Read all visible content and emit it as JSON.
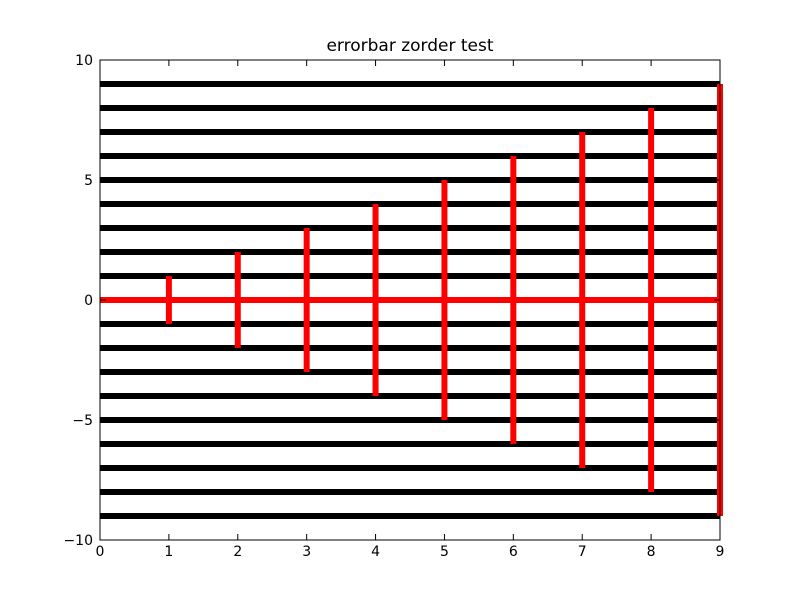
{
  "chart_data": {
    "type": "line",
    "title": "errorbar zorder test",
    "xlabel": "",
    "ylabel": "",
    "xlim": [
      0,
      9
    ],
    "ylim": [
      -10,
      10
    ],
    "xticks": [
      0,
      1,
      2,
      3,
      4,
      5,
      6,
      7,
      8,
      9
    ],
    "xtick_labels": [
      "0",
      "1",
      "2",
      "3",
      "4",
      "5",
      "6",
      "7",
      "8",
      "9"
    ],
    "yticks": [
      -10,
      -5,
      0,
      5,
      10
    ],
    "ytick_labels": [
      "−10",
      "−5",
      "0",
      "5",
      "10"
    ],
    "grid": false,
    "horizontal_lines": {
      "color": "#000000",
      "y": [
        -9,
        -8,
        -7,
        -6,
        -5,
        -4,
        -3,
        -2,
        -1,
        1,
        2,
        3,
        4,
        5,
        6,
        7,
        8,
        9
      ]
    },
    "errorbar_series": {
      "color": "#ff0000",
      "x": [
        0,
        1,
        2,
        3,
        4,
        5,
        6,
        7,
        8,
        9
      ],
      "y": [
        0,
        0,
        0,
        0,
        0,
        0,
        0,
        0,
        0,
        0
      ],
      "yerr": [
        0,
        1,
        2,
        3,
        4,
        5,
        6,
        7,
        8,
        9
      ]
    }
  }
}
